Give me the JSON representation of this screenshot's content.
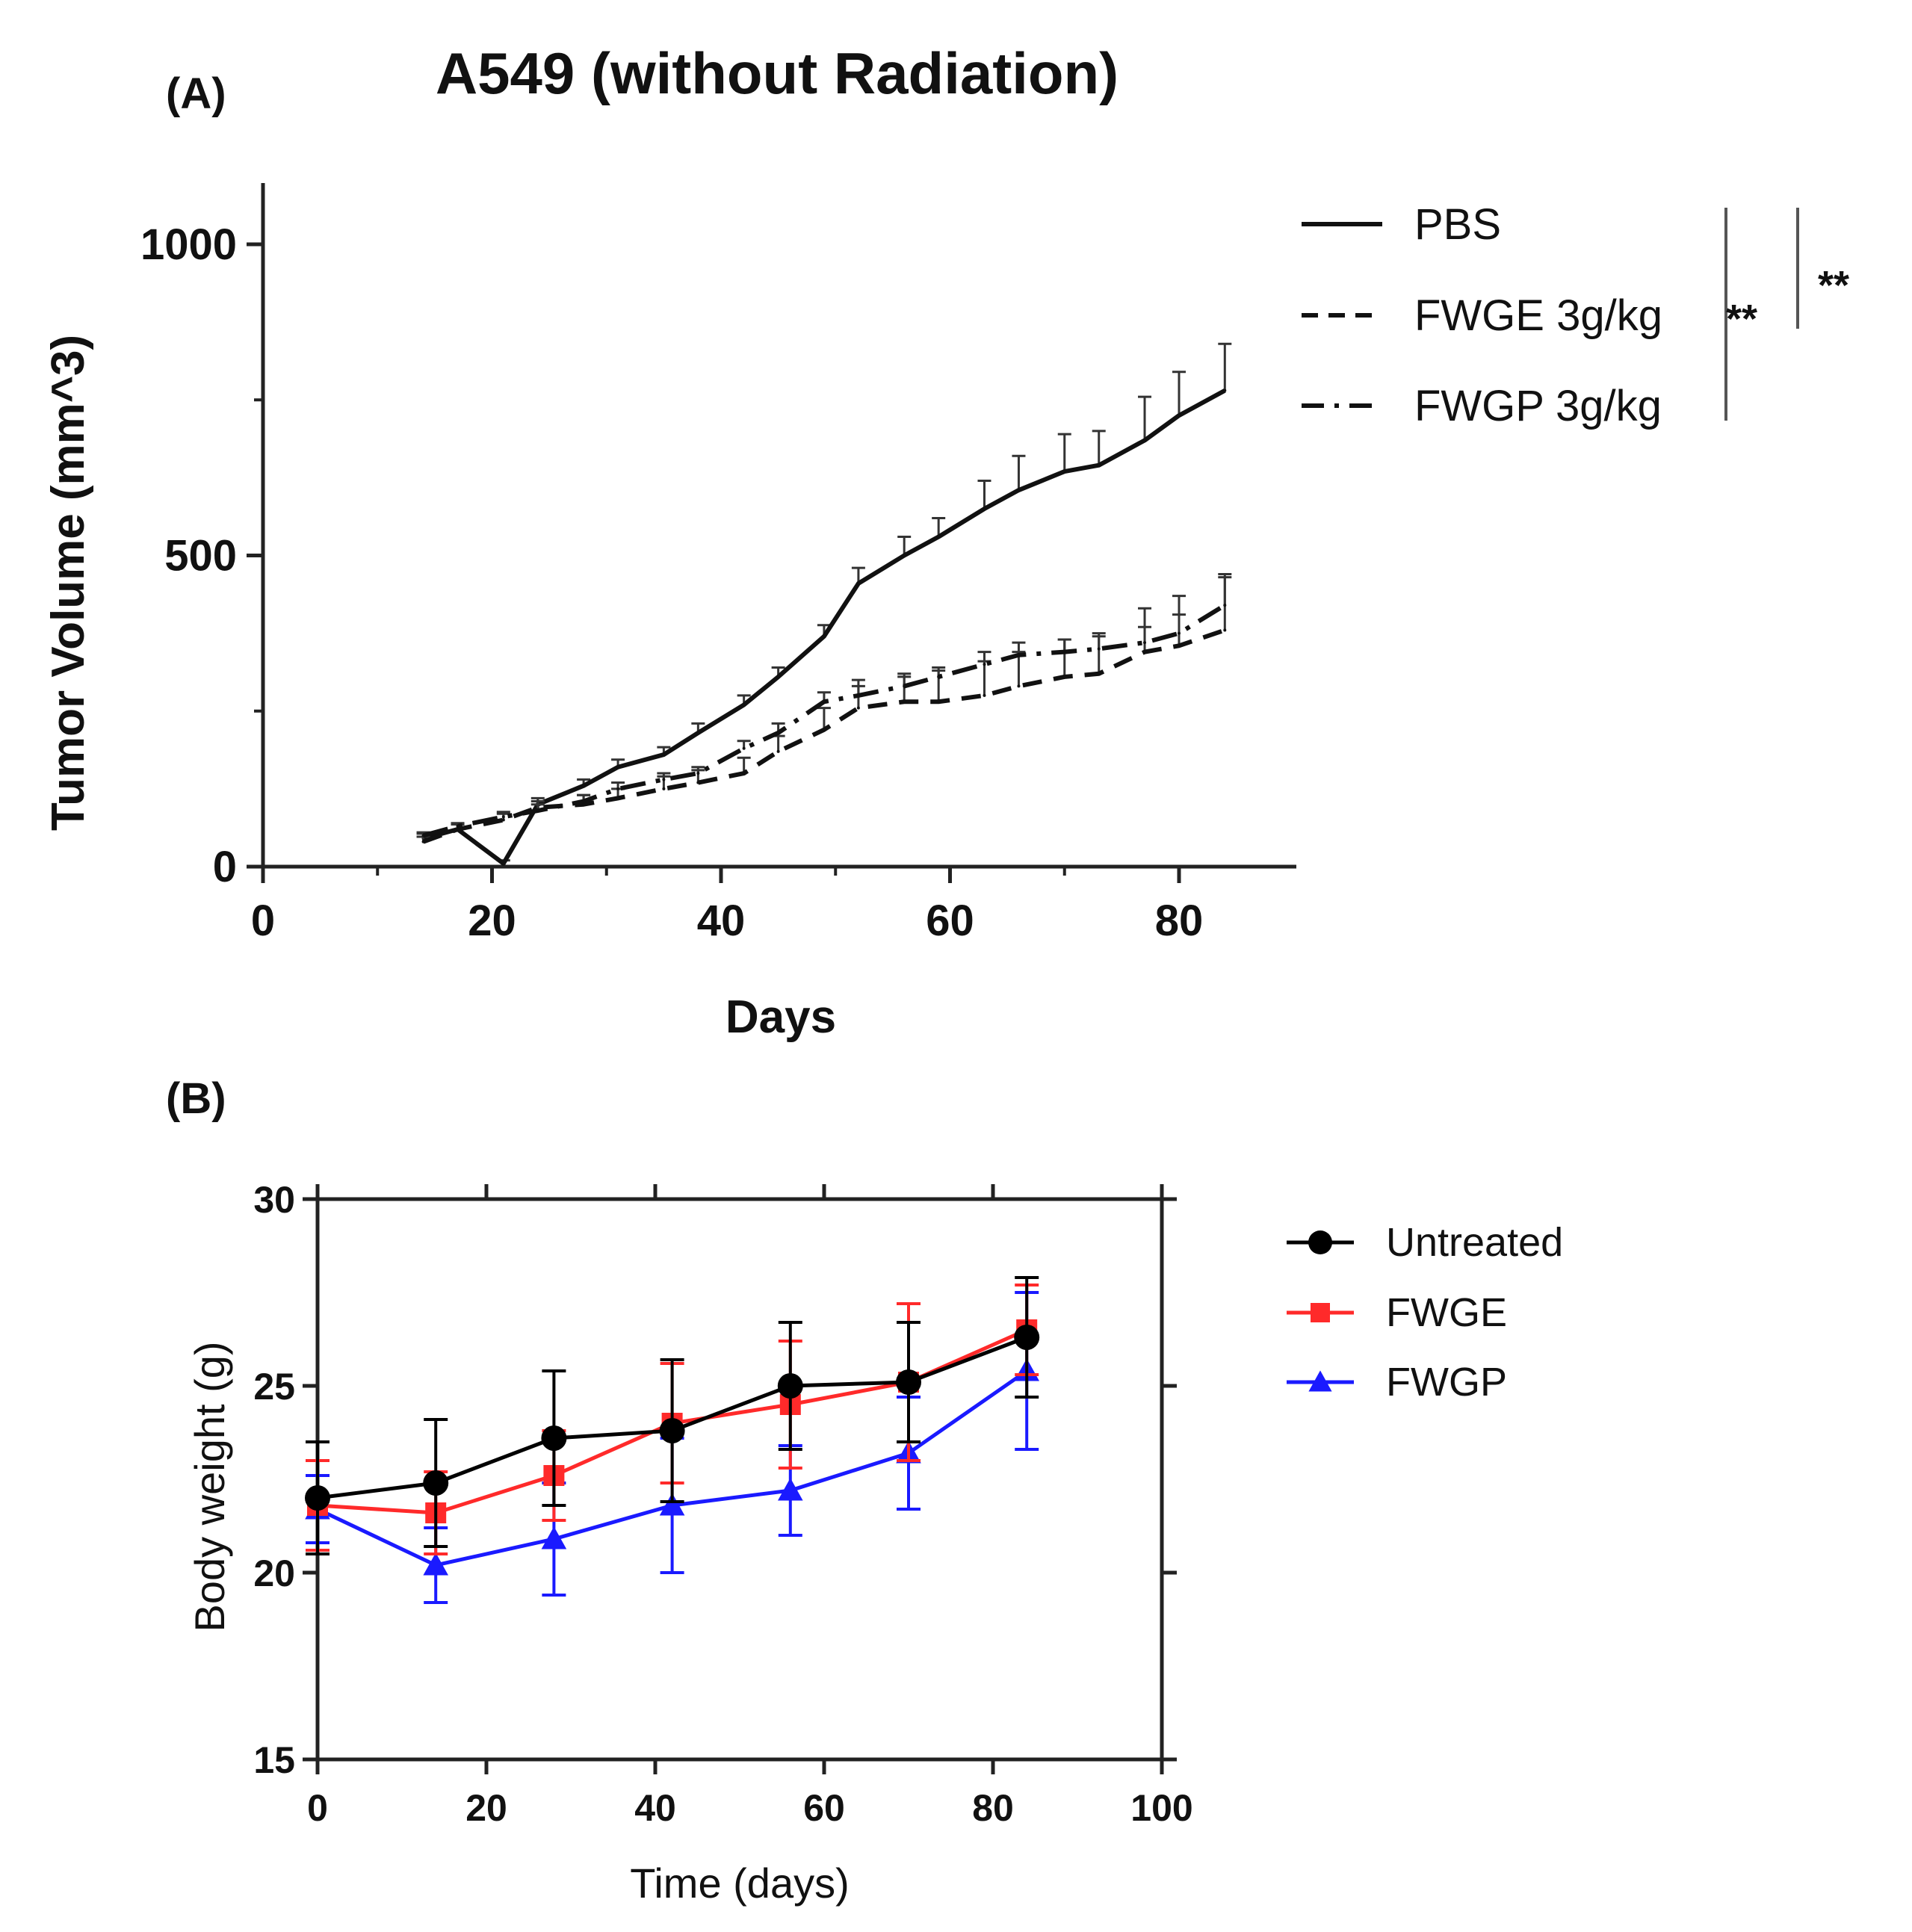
{
  "chart_data": [
    {
      "panel_label": "(A)",
      "type": "line",
      "title": "A549 (without Radiation)",
      "xlabel": "Days",
      "ylabel": "Tumor Volume (mm^3)",
      "xlim": [
        0,
        90
      ],
      "ylim": [
        0,
        1100
      ],
      "xticks": [
        0,
        20,
        40,
        60,
        80
      ],
      "yticks": [
        0,
        500,
        1000
      ],
      "xtick_labels": [
        "0",
        "20",
        "40",
        "60",
        "80"
      ],
      "ytick_labels": [
        "0",
        "500",
        "1000"
      ],
      "legend_position": "right",
      "series": [
        {
          "name": "PBS",
          "style": "solid",
          "x": [
            14,
            17,
            21,
            24,
            28,
            31,
            35,
            38,
            42,
            45,
            49,
            52,
            56,
            59,
            63,
            66,
            70,
            73,
            77,
            80,
            84
          ],
          "y": [
            45,
            60,
            5,
            100,
            130,
            160,
            180,
            215,
            260,
            305,
            370,
            455,
            500,
            530,
            575,
            605,
            635,
            645,
            685,
            725,
            765
          ],
          "err": [
            8,
            8,
            5,
            10,
            10,
            12,
            12,
            15,
            15,
            15,
            18,
            25,
            30,
            30,
            45,
            55,
            60,
            55,
            70,
            70,
            75
          ]
        },
        {
          "name": "FWGE 3g/kg",
          "style": "dashed",
          "x": [
            14,
            17,
            21,
            24,
            28,
            31,
            35,
            38,
            42,
            45,
            49,
            52,
            56,
            59,
            63,
            66,
            70,
            73,
            77,
            80,
            84
          ],
          "y": [
            40,
            60,
            75,
            95,
            100,
            110,
            125,
            135,
            150,
            185,
            220,
            255,
            265,
            265,
            275,
            290,
            305,
            310,
            345,
            355,
            380
          ],
          "err": [
            8,
            8,
            10,
            10,
            15,
            15,
            20,
            20,
            25,
            25,
            35,
            45,
            45,
            50,
            55,
            55,
            60,
            65,
            70,
            80,
            90
          ]
        },
        {
          "name": "FWGP 3g/kg",
          "style": "dashdot",
          "x": [
            14,
            17,
            21,
            24,
            28,
            31,
            35,
            38,
            42,
            45,
            49,
            52,
            56,
            59,
            63,
            66,
            70,
            73,
            77,
            80,
            84
          ],
          "y": [
            50,
            65,
            80,
            90,
            105,
            125,
            140,
            150,
            190,
            215,
            265,
            275,
            290,
            305,
            325,
            340,
            345,
            350,
            360,
            375,
            420
          ],
          "err": [
            5,
            5,
            8,
            10,
            10,
            10,
            10,
            10,
            12,
            15,
            15,
            15,
            15,
            15,
            20,
            20,
            20,
            20,
            25,
            30,
            45
          ]
        }
      ],
      "significance": [
        {
          "groups": [
            "PBS",
            "FWGP 3g/kg"
          ],
          "label": "**"
        },
        {
          "groups": [
            "PBS",
            "FWGE 3g/kg"
          ],
          "label": "**"
        }
      ]
    },
    {
      "panel_label": "(B)",
      "type": "line",
      "title": "",
      "xlabel": "Time (days)",
      "ylabel": "Body weight (g)",
      "xlim": [
        0,
        100
      ],
      "ylim": [
        15,
        30
      ],
      "xticks": [
        0,
        20,
        40,
        60,
        80,
        100
      ],
      "yticks": [
        15,
        20,
        25,
        30
      ],
      "xtick_labels": [
        "0",
        "20",
        "40",
        "60",
        "80",
        "100"
      ],
      "ytick_labels": [
        "15",
        "20",
        "25",
        "30"
      ],
      "legend_position": "right",
      "series": [
        {
          "name": "Untreated",
          "color": "#000000",
          "marker": "circle",
          "x": [
            0,
            14,
            28,
            42,
            56,
            70,
            84
          ],
          "y": [
            22.0,
            22.4,
            23.6,
            23.8,
            25.0,
            25.1,
            26.3
          ],
          "err": [
            1.5,
            1.7,
            1.8,
            1.9,
            1.7,
            1.6,
            1.6
          ]
        },
        {
          "name": "FWGE",
          "color": "#ff2a2a",
          "marker": "square",
          "x": [
            0,
            14,
            28,
            42,
            56,
            70,
            84
          ],
          "y": [
            21.8,
            21.6,
            22.6,
            24.0,
            24.5,
            25.1,
            26.5
          ],
          "err": [
            1.2,
            1.1,
            1.2,
            1.6,
            1.7,
            2.1,
            1.2
          ]
        },
        {
          "name": "FWGP",
          "color": "#1a1aff",
          "marker": "triangle",
          "x": [
            0,
            14,
            28,
            42,
            56,
            70,
            84
          ],
          "y": [
            21.7,
            20.2,
            20.9,
            21.8,
            22.2,
            23.2,
            25.4
          ],
          "err": [
            0.9,
            1.0,
            1.5,
            1.8,
            1.2,
            1.5,
            2.1
          ]
        }
      ]
    }
  ]
}
